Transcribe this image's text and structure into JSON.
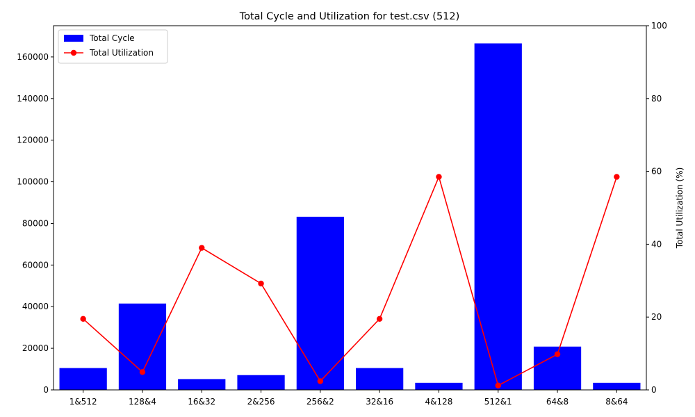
{
  "chart_data": {
    "type": "bar",
    "title": "Total Cycle and Utilization for test.csv (512)",
    "xlabel": "",
    "ylabel_left": "",
    "ylabel_right": "Total Utilization (%)",
    "categories": [
      "1&512",
      "128&4",
      "16&32",
      "2&256",
      "256&2",
      "32&16",
      "4&128",
      "512&1",
      "64&8",
      "8&64"
    ],
    "series": [
      {
        "name": "Total Cycle",
        "type": "bar",
        "axis": "left",
        "color": "#0000ff",
        "values": [
          10500,
          41500,
          5200,
          7100,
          83200,
          10500,
          3400,
          166500,
          20800,
          3400
        ]
      },
      {
        "name": "Total Utilization",
        "type": "line",
        "axis": "right",
        "color": "#ff0000",
        "marker": "circle",
        "values": [
          19.5,
          4.9,
          39.0,
          29.2,
          2.4,
          19.5,
          58.5,
          1.2,
          9.8,
          58.5
        ]
      }
    ],
    "ylim_left": [
      0,
      175000
    ],
    "yticks_left": [
      0,
      20000,
      40000,
      60000,
      80000,
      100000,
      120000,
      140000,
      160000
    ],
    "ylim_right": [
      0,
      100
    ],
    "yticks_right": [
      0,
      20,
      40,
      60,
      80,
      100
    ],
    "legend_position": "top-left",
    "grid": false
  }
}
